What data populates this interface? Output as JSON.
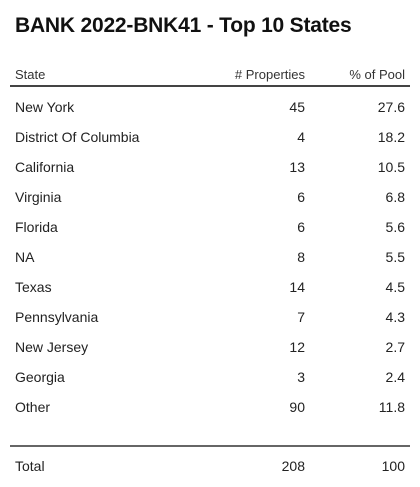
{
  "title": "BANK 2022-BNK41 - Top 10 States",
  "chart_data": {
    "type": "table",
    "title": "BANK 2022-BNK41 - Top 10 States",
    "columns": [
      "State",
      "# Properties",
      "% of Pool"
    ],
    "rows": [
      {
        "state": "New York",
        "properties": "45",
        "pool": "27.6"
      },
      {
        "state": "District Of Columbia",
        "properties": "4",
        "pool": "18.2"
      },
      {
        "state": "California",
        "properties": "13",
        "pool": "10.5"
      },
      {
        "state": "Virginia",
        "properties": "6",
        "pool": "6.8"
      },
      {
        "state": "Florida",
        "properties": "6",
        "pool": "5.6"
      },
      {
        "state": "NA",
        "properties": "8",
        "pool": "5.5"
      },
      {
        "state": "Texas",
        "properties": "14",
        "pool": "4.5"
      },
      {
        "state": "Pennsylvania",
        "properties": "7",
        "pool": "4.3"
      },
      {
        "state": "New Jersey",
        "properties": "12",
        "pool": "2.7"
      },
      {
        "state": "Georgia",
        "properties": "3",
        "pool": "2.4"
      },
      {
        "state": "Other",
        "properties": "90",
        "pool": "11.8"
      }
    ],
    "total": {
      "label": "Total",
      "properties": "208",
      "pool": "100"
    }
  }
}
